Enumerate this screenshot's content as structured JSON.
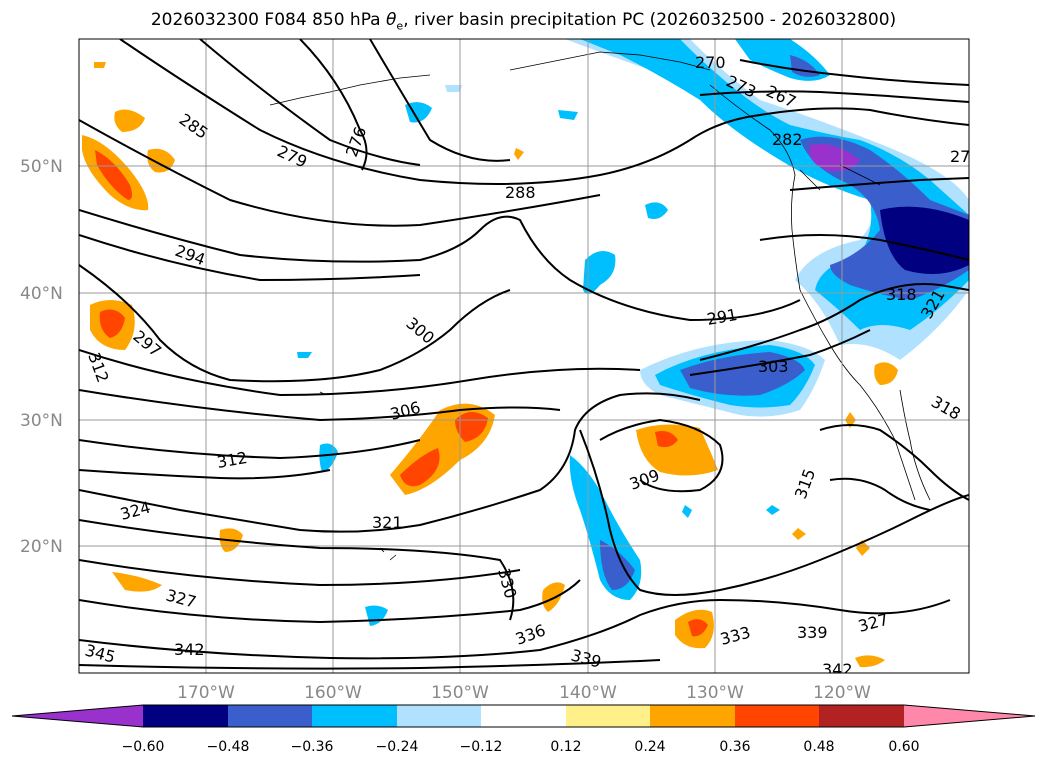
{
  "title": {
    "date": "2026032300",
    "forecast": "F084",
    "level": "850 hPa",
    "symbol": "θ",
    "symbol_sub": "e",
    "rest": ", river basin precipitation PC (2026032500 - 2026032800)"
  },
  "map": {
    "projection": "lat-lon",
    "lon_range": [
      -180,
      -110
    ],
    "lat_range": [
      10,
      60
    ],
    "lon_ticks": [
      "170°W",
      "160°W",
      "150°W",
      "140°W",
      "130°W",
      "120°W"
    ],
    "lat_ticks": [
      "50°N",
      "40°N",
      "30°N",
      "20°N"
    ],
    "gridlines": true,
    "coastlines": true
  },
  "contour_labels": [
    "285",
    "279",
    "276",
    "270",
    "273",
    "267",
    "282",
    "27",
    "288",
    "294",
    "297",
    "312",
    "300",
    "291",
    "318",
    "321",
    "303",
    "306",
    "309",
    "312",
    "315",
    "318",
    "321",
    "324",
    "327",
    "330",
    "336",
    "339",
    "333",
    "339",
    "342",
    "345",
    "342",
    "327"
  ],
  "colorbar": {
    "colors": [
      "#9932cc",
      "#000080",
      "#3a5fcd",
      "#00bfff",
      "#b0e2ff",
      "#ffffff",
      "#fff08a",
      "#ffa500",
      "#ff4500",
      "#b22222",
      "#ff88aa"
    ],
    "ticks": [
      "−0.60",
      "−0.48",
      "−0.36",
      "−0.24",
      "−0.12",
      "0.12",
      "0.24",
      "0.36",
      "0.48",
      "0.60"
    ]
  }
}
